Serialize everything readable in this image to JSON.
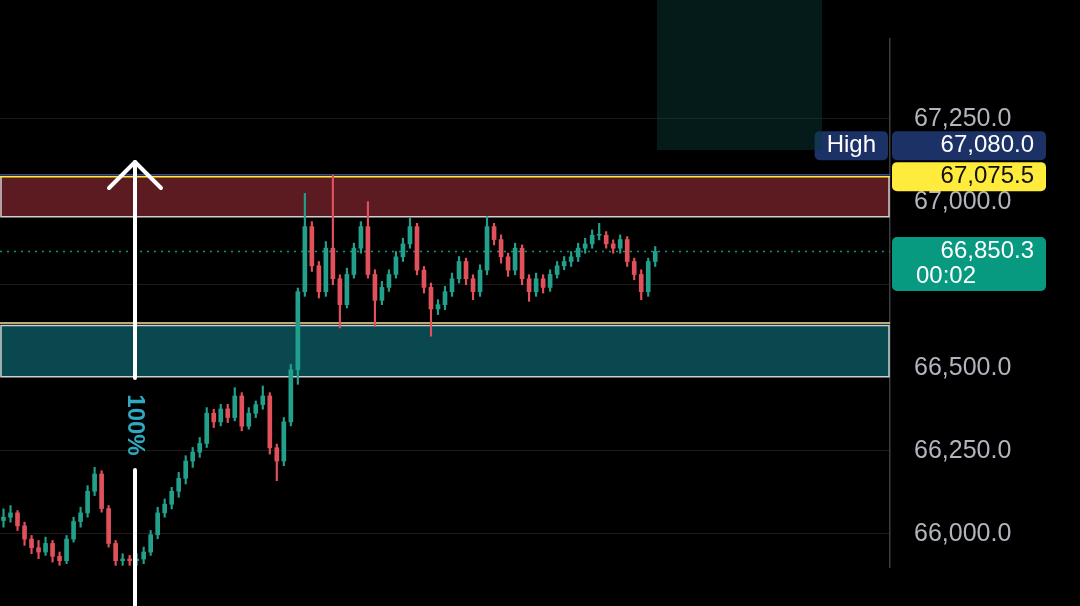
{
  "chart_data": {
    "type": "candlestick",
    "categories": [
      null,
      null,
      null,
      null,
      null,
      null,
      null,
      null,
      null,
      null,
      null,
      null,
      null,
      null,
      null,
      null,
      null,
      null,
      null,
      null,
      null,
      null,
      null,
      null,
      null,
      null,
      null,
      null,
      null,
      null,
      null,
      null,
      null,
      null,
      null,
      null,
      null,
      null,
      null,
      null,
      null,
      null,
      null,
      null,
      null,
      null,
      null,
      null,
      null,
      null,
      null,
      null,
      null,
      null,
      null,
      null,
      null,
      null,
      null,
      null,
      null,
      null,
      null,
      null,
      null,
      null,
      null,
      null,
      null,
      null,
      null,
      null,
      null,
      null,
      null,
      null,
      null,
      null,
      null,
      null,
      null,
      null,
      null,
      null,
      null,
      null,
      null,
      null,
      null,
      null,
      null,
      null,
      null,
      null,
      null,
      null,
      null,
      null,
      null,
      null,
      null,
      null,
      null,
      null,
      null,
      null,
      null,
      null,
      null,
      null,
      null,
      null,
      null,
      null,
      null,
      null,
      null,
      null,
      null,
      null,
      null,
      null,
      null,
      null,
      null,
      null,
      null
    ],
    "ohlc": [
      [
        66040,
        66075,
        66020,
        66050
      ],
      [
        66050,
        66085,
        66035,
        66063
      ],
      [
        66063,
        66070,
        66010,
        66024
      ],
      [
        66024,
        66035,
        65965,
        65984
      ],
      [
        65984,
        65995,
        65940,
        65958
      ],
      [
        65958,
        65980,
        65925,
        65945
      ],
      [
        65945,
        65990,
        65935,
        65971
      ],
      [
        65971,
        65980,
        65915,
        65932
      ],
      [
        65932,
        65945,
        65905,
        65919
      ],
      [
        65919,
        65995,
        65910,
        65984
      ],
      [
        65984,
        66050,
        65975,
        66037
      ],
      [
        66037,
        66080,
        66020,
        66063
      ],
      [
        66063,
        66145,
        66050,
        66128
      ],
      [
        66128,
        66200,
        66115,
        66180
      ],
      [
        66180,
        66190,
        66065,
        66076
      ],
      [
        66076,
        66085,
        65960,
        65971
      ],
      [
        65971,
        65980,
        65905,
        65919
      ],
      [
        65919,
        65940,
        65905,
        65924
      ],
      [
        65924,
        65935,
        65905,
        65919
      ],
      [
        65919,
        65940,
        65905,
        65924
      ],
      [
        65924,
        65960,
        65910,
        65945
      ],
      [
        65945,
        66010,
        65935,
        65997
      ],
      [
        65997,
        66080,
        65985,
        66063
      ],
      [
        66063,
        66105,
        66050,
        66089
      ],
      [
        66089,
        66140,
        66075,
        66128
      ],
      [
        66128,
        66185,
        66110,
        66167
      ],
      [
        66167,
        66235,
        66150,
        66219
      ],
      [
        66219,
        66260,
        66200,
        66246
      ],
      [
        66246,
        66290,
        66230,
        66272
      ],
      [
        66272,
        66380,
        66260,
        66363
      ],
      [
        66363,
        66375,
        66320,
        66337
      ],
      [
        66337,
        66390,
        66325,
        66376
      ],
      [
        66376,
        66390,
        66335,
        66350
      ],
      [
        66350,
        66440,
        66340,
        66415
      ],
      [
        66415,
        66425,
        66310,
        66324
      ],
      [
        66324,
        66380,
        66315,
        66363
      ],
      [
        66363,
        66400,
        66350,
        66389
      ],
      [
        66389,
        66445,
        66375,
        66415
      ],
      [
        66415,
        66425,
        66240,
        66259
      ],
      [
        66259,
        66270,
        66160,
        66219
      ],
      [
        66219,
        66350,
        66205,
        66337
      ],
      [
        66337,
        66510,
        66325,
        66494
      ],
      [
        66494,
        66740,
        66450,
        66729
      ],
      [
        66729,
        67025,
        66715,
        66925
      ],
      [
        66925,
        66940,
        66790,
        66807
      ],
      [
        66807,
        66820,
        66710,
        66729
      ],
      [
        66729,
        66880,
        66715,
        66860
      ],
      [
        66860,
        67080,
        66750,
        66768
      ],
      [
        66768,
        66780,
        66620,
        66690
      ],
      [
        66690,
        66800,
        66680,
        66781
      ],
      [
        66781,
        66875,
        66770,
        66860
      ],
      [
        66860,
        66940,
        66845,
        66925
      ],
      [
        66925,
        67000,
        66770,
        66781
      ],
      [
        66781,
        66795,
        66625,
        66703
      ],
      [
        66703,
        66760,
        66690,
        66742
      ],
      [
        66742,
        66795,
        66730,
        66781
      ],
      [
        66781,
        66850,
        66770,
        66834
      ],
      [
        66834,
        66890,
        66820,
        66873
      ],
      [
        66873,
        66950,
        66860,
        66925
      ],
      [
        66925,
        66935,
        66780,
        66794
      ],
      [
        66794,
        66805,
        66725,
        66742
      ],
      [
        66742,
        66755,
        66595,
        66677
      ],
      [
        66677,
        66705,
        66660,
        66690
      ],
      [
        66690,
        66745,
        66675,
        66729
      ],
      [
        66729,
        66785,
        66715,
        66768
      ],
      [
        66768,
        66835,
        66755,
        66820
      ],
      [
        66820,
        66830,
        66750,
        66768
      ],
      [
        66768,
        66780,
        66705,
        66729
      ],
      [
        66729,
        66810,
        66715,
        66794
      ],
      [
        66794,
        66955,
        66780,
        66925
      ],
      [
        66925,
        66935,
        66870,
        66886
      ],
      [
        66886,
        66900,
        66815,
        66834
      ],
      [
        66834,
        66845,
        66775,
        66794
      ],
      [
        66794,
        66875,
        66780,
        66860
      ],
      [
        66860,
        66870,
        66750,
        66768
      ],
      [
        66768,
        66780,
        66700,
        66729
      ],
      [
        66729,
        66785,
        66715,
        66768
      ],
      [
        66768,
        66780,
        66725,
        66742
      ],
      [
        66742,
        66795,
        66730,
        66781
      ],
      [
        66781,
        66820,
        66770,
        66807
      ],
      [
        66807,
        66835,
        66795,
        66820
      ],
      [
        66820,
        66850,
        66805,
        66834
      ],
      [
        66834,
        66875,
        66820,
        66860
      ],
      [
        66860,
        66890,
        66845,
        66873
      ],
      [
        66873,
        66915,
        66860,
        66899
      ],
      [
        66899,
        66935,
        66885,
        66899
      ],
      [
        66899,
        66910,
        66860,
        66873
      ],
      [
        66873,
        66885,
        66845,
        66860
      ],
      [
        66860,
        66900,
        66845,
        66886
      ],
      [
        66886,
        66895,
        66805,
        66820
      ],
      [
        66820,
        66830,
        66765,
        66781
      ],
      [
        66781,
        66795,
        66705,
        66729
      ],
      [
        66729,
        66830,
        66715,
        66820
      ],
      [
        66820,
        66865,
        66805,
        66850.3
      ],
      null,
      null,
      null,
      null,
      null,
      null,
      null,
      null,
      null,
      null,
      null,
      null,
      null,
      null,
      null,
      null,
      null,
      null,
      null,
      null,
      null,
      null,
      null,
      null,
      null,
      null,
      null,
      null,
      null,
      null,
      null,
      null,
      null
    ],
    "ylim": [
      65900,
      67490
    ],
    "yticks": [
      {
        "value": 66000,
        "label": "66,000.0"
      },
      {
        "value": 66250,
        "label": "66,250.0"
      },
      {
        "value": 66500,
        "label": "66,500.0"
      },
      {
        "value": 66750,
        "label": null
      },
      {
        "value": 67000,
        "label": "67,000.0"
      },
      {
        "value": 67250,
        "label": "67,250.0"
      }
    ],
    "grid": "y",
    "tick_labels": "y",
    "bands": [
      {
        "axis": "y",
        "from": 66955,
        "to": 67080,
        "color": "#5c1a21"
      },
      {
        "axis": "y",
        "from": 66473,
        "to": 66627,
        "color": "#0a4850"
      }
    ],
    "ref_lines": [
      {
        "axis": "y",
        "value": 67080,
        "label": "67,080.0",
        "color": "#1c3166"
      },
      {
        "axis": "y",
        "value": 67075.5,
        "label": "67,075.5",
        "color": "#ffeb3b"
      },
      {
        "axis": "y",
        "value": 66850.3,
        "label": "66,850.3\n00:02",
        "color": "#089981",
        "line_style": "dotted"
      },
      {
        "axis": "y",
        "value": 66635,
        "color": "#f5e3a0"
      }
    ],
    "annotations": [
      {
        "text": "High",
        "y": 67080
      },
      "100%"
    ]
  }
}
